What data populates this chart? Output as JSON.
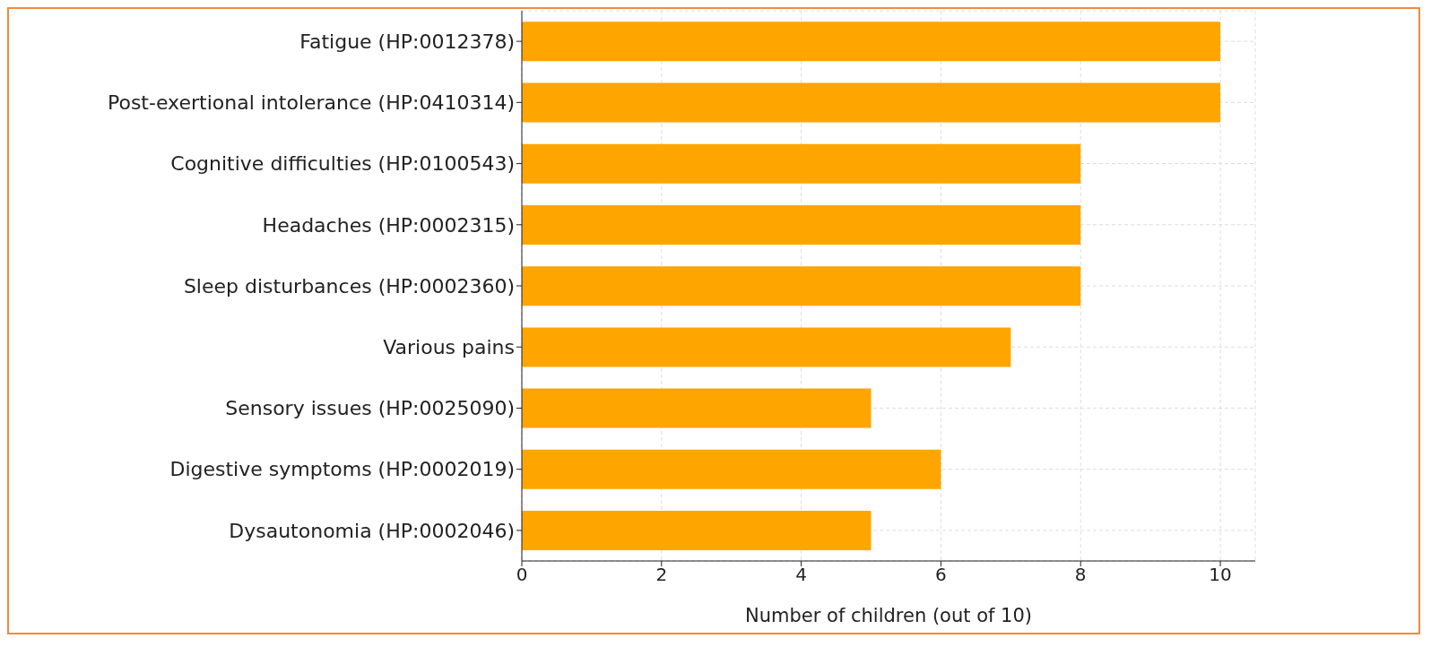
{
  "chart_data": {
    "type": "bar",
    "orientation": "horizontal",
    "xlabel": "Number of children (out of 10)",
    "categories": [
      "Fatigue (HP:0012378)",
      "Post-exertional intolerance (HP:0410314)",
      "Cognitive difficulties (HP:0100543)",
      "Headaches (HP:0002315)",
      "Sleep disturbances (HP:0002360)",
      "Various pains",
      "Sensory issues (HP:0025090)",
      "Digestive symptoms (HP:0002019)",
      "Dysautonomia (HP:0002046)"
    ],
    "values": [
      10,
      10,
      8,
      8,
      8,
      7,
      5,
      6,
      5
    ],
    "color": "#ffa500",
    "xlim": [
      0,
      10.5
    ],
    "xticks": [
      0,
      2,
      4,
      6,
      8,
      10
    ],
    "grid": true
  }
}
